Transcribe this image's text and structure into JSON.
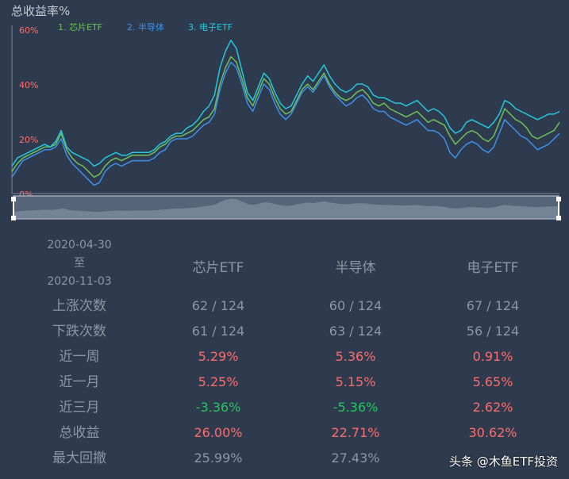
{
  "chart_data": {
    "type": "line",
    "title": "总收益率%",
    "y_ticks": [
      "60%",
      "40%",
      "20%",
      "0%"
    ],
    "ylim": [
      0,
      60
    ],
    "grid": false,
    "legend_position": "top-left",
    "series": [
      {
        "name": "1. 芯片ETF",
        "color": "#6fbf5a",
        "values": [
          8,
          11,
          13,
          14,
          15,
          16,
          17,
          17,
          18,
          22,
          16,
          13,
          11,
          10,
          8,
          6,
          7,
          10,
          12,
          13,
          12,
          13,
          14,
          14,
          14,
          14,
          15,
          17,
          18,
          20,
          21,
          21,
          22,
          23,
          25,
          27,
          28,
          31,
          40,
          46,
          50,
          48,
          42,
          35,
          32,
          37,
          42,
          40,
          35,
          31,
          29,
          30,
          34,
          38,
          40,
          38,
          41,
          44,
          40,
          37,
          35,
          34,
          35,
          37,
          38,
          36,
          33,
          32,
          33,
          31,
          30,
          29,
          28,
          29,
          30,
          28,
          26,
          27,
          26,
          25,
          21,
          18,
          20,
          22,
          23,
          22,
          20,
          19,
          21,
          26,
          31,
          29,
          27,
          26,
          24,
          21,
          20,
          21,
          22,
          23,
          26
        ]
      },
      {
        "name": "2. 半导体",
        "color": "#3d8fe8",
        "values": [
          6,
          9,
          12,
          13,
          14,
          15,
          16,
          16,
          17,
          20,
          14,
          11,
          9,
          7,
          5,
          3,
          4,
          8,
          10,
          11,
          10,
          11,
          12,
          12,
          12,
          12,
          13,
          15,
          16,
          19,
          20,
          20,
          20,
          21,
          23,
          25,
          26,
          29,
          38,
          44,
          48,
          46,
          40,
          33,
          30,
          35,
          40,
          38,
          33,
          29,
          27,
          29,
          33,
          37,
          39,
          37,
          40,
          43,
          39,
          36,
          34,
          32,
          33,
          35,
          36,
          34,
          31,
          30,
          30,
          28,
          27,
          26,
          25,
          26,
          27,
          25,
          23,
          23,
          22,
          20,
          15,
          13,
          16,
          18,
          19,
          18,
          16,
          15,
          17,
          22,
          27,
          25,
          23,
          21,
          20,
          18,
          16,
          17,
          18,
          20,
          22
        ]
      },
      {
        "name": "3. 电子ETF",
        "color": "#26c6da",
        "values": [
          10,
          13,
          14,
          15,
          16,
          17,
          18,
          17,
          19,
          23,
          17,
          15,
          14,
          13,
          12,
          10,
          11,
          13,
          14,
          15,
          14,
          14,
          15,
          15,
          15,
          15,
          16,
          18,
          19,
          21,
          22,
          22,
          24,
          25,
          27,
          30,
          32,
          36,
          46,
          52,
          56,
          53,
          45,
          37,
          34,
          39,
          44,
          42,
          37,
          33,
          31,
          32,
          36,
          40,
          43,
          41,
          44,
          47,
          43,
          40,
          38,
          37,
          38,
          40,
          40,
          39,
          36,
          35,
          35,
          34,
          33,
          33,
          32,
          33,
          34,
          32,
          30,
          31,
          30,
          28,
          24,
          22,
          23,
          26,
          27,
          26,
          25,
          24,
          26,
          29,
          34,
          33,
          31,
          30,
          29,
          28,
          27,
          28,
          29,
          29,
          30
        ]
      }
    ]
  },
  "stats": {
    "date_start": "2020-04-30",
    "date_sep": "至",
    "date_end": "2020-11-03",
    "columns": [
      "芯片ETF",
      "半导体",
      "电子ETF"
    ],
    "rows": [
      {
        "label": "上涨次数",
        "cells": [
          {
            "v": "62 / 124",
            "c": "gray"
          },
          {
            "v": "60 / 124",
            "c": "gray"
          },
          {
            "v": "67 / 124",
            "c": "gray"
          }
        ]
      },
      {
        "label": "下跌次数",
        "cells": [
          {
            "v": "61 / 124",
            "c": "gray"
          },
          {
            "v": "63 / 124",
            "c": "gray"
          },
          {
            "v": "56 / 124",
            "c": "gray"
          }
        ]
      },
      {
        "label": "近一周",
        "cells": [
          {
            "v": "5.29%",
            "c": "red"
          },
          {
            "v": "5.36%",
            "c": "red"
          },
          {
            "v": "0.91%",
            "c": "red"
          }
        ]
      },
      {
        "label": "近一月",
        "cells": [
          {
            "v": "5.25%",
            "c": "red"
          },
          {
            "v": "5.15%",
            "c": "red"
          },
          {
            "v": "5.65%",
            "c": "red"
          }
        ]
      },
      {
        "label": "近三月",
        "cells": [
          {
            "v": "-3.36%",
            "c": "green"
          },
          {
            "v": "-5.36%",
            "c": "green"
          },
          {
            "v": "2.62%",
            "c": "red"
          }
        ]
      },
      {
        "label": "总收益",
        "cells": [
          {
            "v": "26.00%",
            "c": "red"
          },
          {
            "v": "22.71%",
            "c": "red"
          },
          {
            "v": "30.62%",
            "c": "red"
          }
        ]
      },
      {
        "label": "最大回撤",
        "cells": [
          {
            "v": "25.99%",
            "c": "gray"
          },
          {
            "v": "27.43%",
            "c": "gray"
          },
          {
            "v": "",
            "c": "gray"
          }
        ]
      }
    ]
  },
  "watermark": "头条 @木鱼ETF投资"
}
